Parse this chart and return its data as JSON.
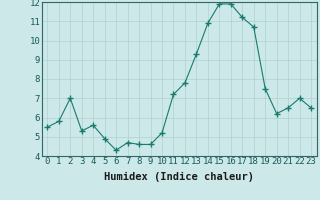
{
  "x": [
    0,
    1,
    2,
    3,
    4,
    5,
    6,
    7,
    8,
    9,
    10,
    11,
    12,
    13,
    14,
    15,
    16,
    17,
    18,
    19,
    20,
    21,
    22,
    23
  ],
  "y": [
    5.5,
    5.8,
    7.0,
    5.3,
    5.6,
    4.9,
    4.3,
    4.7,
    4.6,
    4.6,
    5.2,
    7.2,
    7.8,
    9.3,
    10.9,
    11.9,
    11.9,
    11.2,
    10.7,
    7.5,
    6.2,
    6.5,
    7.0,
    6.5
  ],
  "xlabel": "Humidex (Indice chaleur)",
  "ylim": [
    4,
    12
  ],
  "xlim": [
    -0.5,
    23.5
  ],
  "yticks": [
    4,
    5,
    6,
    7,
    8,
    9,
    10,
    11,
    12
  ],
  "xticks": [
    0,
    1,
    2,
    3,
    4,
    5,
    6,
    7,
    8,
    9,
    10,
    11,
    12,
    13,
    14,
    15,
    16,
    17,
    18,
    19,
    20,
    21,
    22,
    23
  ],
  "line_color": "#1a7a6e",
  "marker": "+",
  "marker_size": 4.0,
  "bg_color": "#cce8e8",
  "grid_color": "#b0d0d0",
  "tick_label_fontsize": 6.5,
  "xlabel_fontsize": 7.5
}
